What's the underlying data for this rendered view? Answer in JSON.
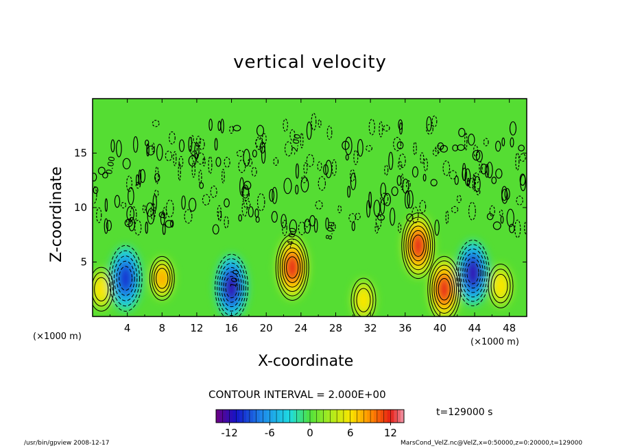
{
  "chart_data": {
    "type": "heatmap",
    "title": "vertical velocity",
    "xlabel": "X-coordinate",
    "ylabel": "Z-coordinate",
    "x_unit_label": "(×1000 m)",
    "xlim": [
      0,
      50
    ],
    "ylim": [
      0,
      20
    ],
    "x_ticks": [
      "4",
      "8",
      "12",
      "16",
      "20",
      "24",
      "28",
      "32",
      "36",
      "40",
      "44",
      "48"
    ],
    "y_ticks": [
      "5",
      "10",
      "15"
    ],
    "contour_interval_text": "CONTOUR INTERVAL = 2.000E+00",
    "time_label": "t=129000 s",
    "colorbar": {
      "min": -14,
      "max": 14,
      "tick_labels": [
        "-12",
        "-6",
        "0",
        "6",
        "12"
      ],
      "tick_values": [
        -12,
        -6,
        0,
        6,
        12
      ],
      "colormap": "rainbow (purple-blue-cyan-green-yellow-red-pink)"
    },
    "contour_labels": [
      "0.00",
      "-2.00",
      "10.0",
      "-4.00",
      "8.00"
    ],
    "features": [
      {
        "x": 1.0,
        "z": 2.5,
        "value": 6
      },
      {
        "x": 3.8,
        "z": 3.5,
        "value": -10
      },
      {
        "x": 8.0,
        "z": 3.5,
        "value": 8
      },
      {
        "x": 16.0,
        "z": 2.7,
        "value": -12
      },
      {
        "x": 23.0,
        "z": 4.5,
        "value": 12
      },
      {
        "x": 31.2,
        "z": 1.5,
        "value": 6
      },
      {
        "x": 37.5,
        "z": 6.5,
        "value": 12
      },
      {
        "x": 40.5,
        "z": 2.5,
        "value": 12
      },
      {
        "x": 43.8,
        "z": 4.0,
        "value": -12
      },
      {
        "x": 47.0,
        "z": 2.8,
        "value": 6
      }
    ]
  },
  "footer": {
    "left": "/usr/bin/gpview   2008-12-17",
    "right": "MarsCond_VelZ.nc@VelZ,x=0:50000,z=0:20000,t=129000"
  }
}
